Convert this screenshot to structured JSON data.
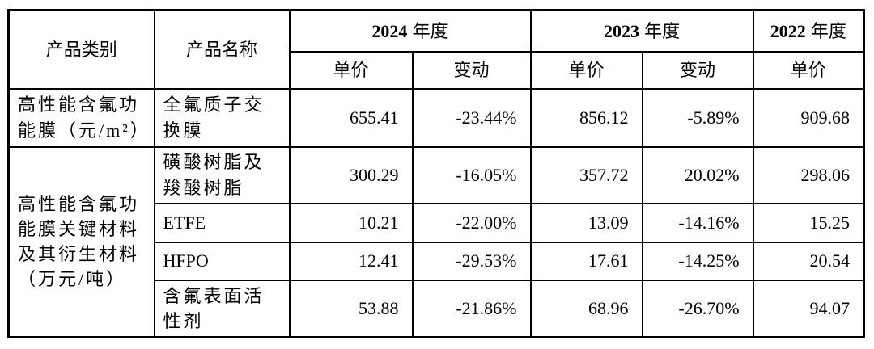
{
  "table": {
    "header": {
      "product_category": "产品类别",
      "product_name": "产品名称",
      "years": [
        {
          "num": "2024",
          "suffix": "年度"
        },
        {
          "num": "2023",
          "suffix": "年度"
        },
        {
          "num": "2022",
          "suffix": "年度"
        }
      ],
      "sub": {
        "unit_price": "单价",
        "change": "变动"
      }
    },
    "body": [
      {
        "category": "高性能含氟功\n能膜（元/m²）",
        "name": "全氟质子交\n换膜",
        "price_2024": "655.41",
        "change_2024": "-23.44%",
        "price_2023": "856.12",
        "change_2023": "-5.89%",
        "price_2022": "909.68"
      },
      {
        "category": "高性能含氟功\n能膜关键材料\n及其衍生材料\n（万元/吨）",
        "name": "磺酸树脂及\n羧酸树脂",
        "price_2024": "300.29",
        "change_2024": "-16.05%",
        "price_2023": "357.72",
        "change_2023": "20.02%",
        "price_2022": "298.06"
      },
      {
        "name": "ETFE",
        "price_2024": "10.21",
        "change_2024": "-22.00%",
        "price_2023": "13.09",
        "change_2023": "-14.16%",
        "price_2022": "15.25"
      },
      {
        "name": "HFPO",
        "price_2024": "12.41",
        "change_2024": "-29.53%",
        "price_2023": "17.61",
        "change_2023": "-14.25%",
        "price_2022": "20.54"
      },
      {
        "name": "含氟表面活\n性剂",
        "price_2024": "53.88",
        "change_2024": "-21.86%",
        "price_2023": "68.96",
        "change_2023": "-26.70%",
        "price_2022": "94.07"
      }
    ]
  }
}
